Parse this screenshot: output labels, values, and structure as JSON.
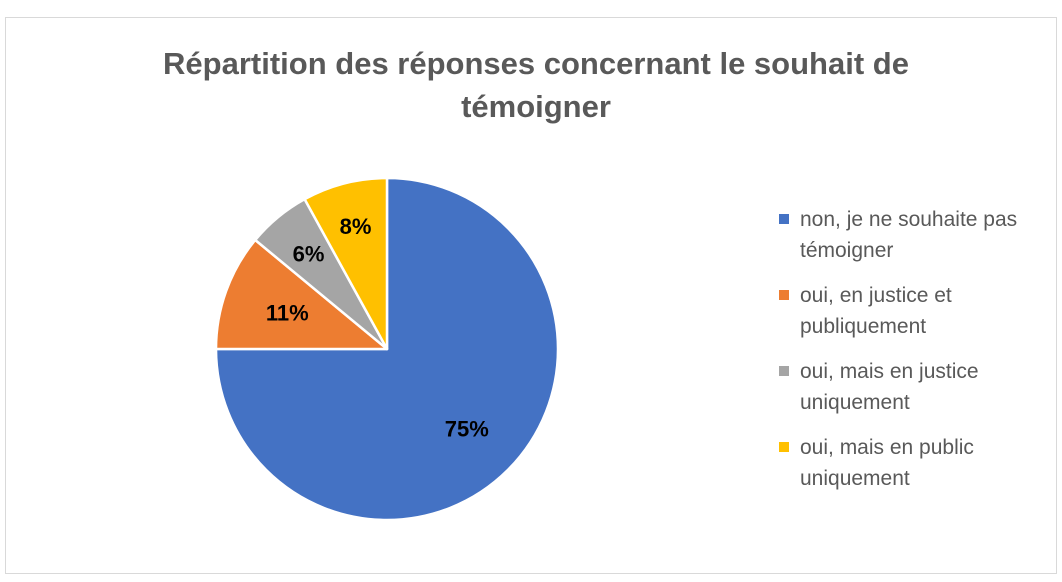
{
  "chart_data": {
    "type": "pie",
    "title": "Répartition des réponses concernant le souhait de témoigner",
    "categories": [
      "non, je ne souhaite pas témoigner",
      "oui, en justice et publiquement",
      "oui, mais en justice uniquement",
      "oui, mais en public uniquement"
    ],
    "values": [
      75,
      11,
      6,
      8
    ],
    "data_labels": [
      "75%",
      "11%",
      "6%",
      "8%"
    ],
    "colors": [
      "#4472c4",
      "#ed7d31",
      "#a5a5a5",
      "#ffc000"
    ],
    "legend_position": "right"
  }
}
